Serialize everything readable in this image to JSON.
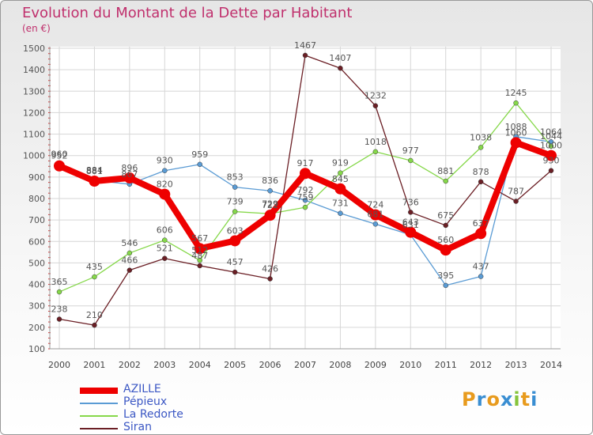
{
  "title": "Evolution du Montant de la Dette par Habitant",
  "subtitle": "(en €)",
  "logo": "Proxiti",
  "chart_data": {
    "type": "line",
    "title": "Evolution du Montant de la Dette par Habitant",
    "subtitle": "(en €)",
    "x": [
      "2000",
      "2001",
      "2002",
      "2003",
      "2004",
      "2005",
      "2006",
      "2007",
      "2008",
      "2009",
      "2010",
      "2011",
      "2012",
      "2013",
      "2014"
    ],
    "yticks": [
      100,
      200,
      300,
      400,
      500,
      600,
      700,
      800,
      900,
      1000,
      1100,
      1200,
      1300,
      1400,
      1500
    ],
    "ylim": [
      100,
      1500
    ],
    "grid": true,
    "legend_position": "bottom-left",
    "series": [
      {
        "name": "AZILLE",
        "color": "#ee0000",
        "values": [
          952,
          881,
          896,
          820,
          567,
          603,
          722,
          917,
          845,
          724,
          643,
          560,
          637,
          1060,
          1000
        ]
      },
      {
        "name": "Pépieux",
        "color": "#5a9bd4",
        "values": [
          960,
          884,
          867,
          930,
          959,
          853,
          836,
          792,
          731,
          681,
          631,
          395,
          437,
          1088,
          1064
        ]
      },
      {
        "name": "La Redorte",
        "color": "#86d84a",
        "values": [
          365,
          435,
          546,
          606,
          512,
          739,
          729,
          759,
          919,
          1018,
          977,
          881,
          1038,
          1245,
          1044
        ]
      },
      {
        "name": "Siran",
        "color": "#6b1f25",
        "values": [
          238,
          210,
          466,
          521,
          487,
          457,
          426,
          1467,
          1407,
          1232,
          736,
          675,
          878,
          787,
          930
        ]
      }
    ]
  }
}
